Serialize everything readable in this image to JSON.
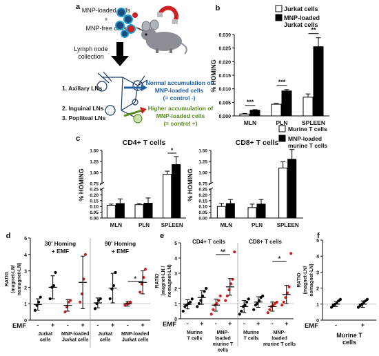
{
  "panel_a": {
    "letter": "a",
    "mnp_loaded_cells": "MNP-loaded cells",
    "plus": "+",
    "mnp_free_cells": "MNP-free cells",
    "lymph_node": "Lymph node",
    "collection": "collection",
    "ln1": "1. Axillary LNs",
    "ln2": "2. Inguinal LNs",
    "ln3": "3. Popliteal LNs",
    "normal1": "Normal accumulation of",
    "normal2": "MNP-loaded cells",
    "normal3": "(= control -)",
    "higher1": "Higher accumulation of",
    "higher2": "MNP-loaded cells",
    "higher3": "(= control +)",
    "normal_color": "#1f5fa8",
    "higher_color": "#5a8a1a"
  },
  "chart_data": [
    {
      "id": "b",
      "letter": "b",
      "type": "bar",
      "categories": [
        "MLN",
        "PLN",
        "SPLEEN"
      ],
      "ylabel": "% HOMING",
      "ylim": [
        0,
        0.03
      ],
      "yticks": [
        "0.000",
        "0.005",
        "0.010",
        "0.015",
        "0.020",
        "0.025",
        "0.030"
      ],
      "legend": [
        "Jurkat cells",
        "MNP-loaded Jurkat cells"
      ],
      "legend_lines": [
        [
          "Jurkat cells"
        ],
        [
          "MNP-loaded",
          "Jurkat cells"
        ]
      ],
      "series": [
        {
          "name": "Jurkat cells",
          "values": [
            0.0007,
            0.0043,
            0.0069
          ],
          "err": [
            0.0002,
            0.0003,
            0.0012
          ],
          "fill": "#ffffff"
        },
        {
          "name": "MNP-loaded Jurkat cells",
          "values": [
            0.0021,
            0.0092,
            0.0255
          ],
          "err": [
            0.0002,
            0.0005,
            0.0033
          ],
          "fill": "#000000"
        }
      ],
      "significance": [
        {
          "category": 0,
          "label": "***"
        },
        {
          "category": 1,
          "label": "***"
        },
        {
          "category": 2,
          "label": "**"
        }
      ]
    },
    {
      "id": "c1",
      "letter": "c",
      "type": "bar",
      "title": "CD4+ T cells",
      "categories": [
        "MLN",
        "PLN",
        "SPLEEN"
      ],
      "ylabel": "% HOMING",
      "axis_break": {
        "lower": [
          0,
          0.25
        ],
        "upper": [
          0.75,
          1.5
        ]
      },
      "yticks_lower": [
        "0.00",
        "0.05",
        "0.10",
        "0.15",
        "0.20",
        "0.25"
      ],
      "yticks_upper": [
        "0.75",
        "1.00",
        "1.25",
        "1.50"
      ],
      "series": [
        {
          "name": "Murine T cells",
          "values": [
            0.11,
            0.115,
            0.96
          ],
          "err": [
            0.01,
            0.01,
            0.07
          ],
          "fill": "#ffffff"
        },
        {
          "name": "MNP-loaded murine T cells",
          "values": [
            0.125,
            0.128,
            1.18
          ],
          "err": [
            0.04,
            0.045,
            0.18
          ],
          "fill": "#000000"
        }
      ],
      "significance": [
        {
          "category": 2,
          "label": "*"
        }
      ]
    },
    {
      "id": "c2",
      "letter": "",
      "type": "bar",
      "title": "CD8+ T cells",
      "categories": [
        "MLN",
        "PLN",
        "SPLEEN"
      ],
      "ylabel": "% HOMING",
      "axis_break": {
        "lower": [
          0,
          0.25
        ],
        "upper": [
          0.75,
          1.5
        ]
      },
      "yticks_lower": [
        "0.00",
        "0.05",
        "0.10",
        "0.15",
        "0.20",
        "0.25"
      ],
      "yticks_upper": [
        "0.75",
        "1.00",
        "1.25",
        "1.50"
      ],
      "legend": [
        "Murine T cells",
        "MNP-loaded murine T cells"
      ],
      "legend_lines": [
        [
          "Murine T cells"
        ],
        [
          "MNP-loaded",
          "murine T cells"
        ]
      ],
      "series": [
        {
          "name": "Murine T cells",
          "values": [
            0.1,
            0.09,
            1.1
          ],
          "err": [
            0.025,
            0.03,
            0.14
          ],
          "fill": "#ffffff"
        },
        {
          "name": "MNP-loaded murine T cells",
          "values": [
            0.125,
            0.12,
            1.3
          ],
          "err": [
            0.035,
            0.04,
            0.22
          ],
          "fill": "#000000"
        }
      ]
    },
    {
      "id": "d",
      "letter": "d",
      "type": "scatter",
      "ylabel_lines": [
        "RATIO",
        "(magnet-LN/",
        "nomagnet-LN)"
      ],
      "ylim": [
        0,
        5
      ],
      "yticks": [
        "0",
        "1",
        "2",
        "3",
        "4",
        "5"
      ],
      "reference_line": 1,
      "emf_label": "EMF",
      "emf_signs": [
        "-",
        "+",
        "-",
        "+",
        "-",
        "+",
        "-",
        "+"
      ],
      "subtitles": [
        [
          "30' Homing",
          "+ EMF"
        ],
        [
          "90' Homing",
          "+ EMF"
        ]
      ],
      "group_labels": [
        [
          "Jurkat",
          "cells"
        ],
        [
          "MNP-loaded",
          "Jurkat cells"
        ],
        [
          "Jurkat",
          "cells"
        ],
        [
          "MNP-loaded",
          "Jurkat cells"
        ]
      ],
      "groups": [
        {
          "values": [
            0.6,
            0.9,
            1.1,
            1.4
          ],
          "mean": 0.95,
          "sd": 0.35,
          "color": "#000000"
        },
        {
          "values": [
            1.3,
            2.0,
            2.1,
            2.9
          ],
          "mean": 2.0,
          "sd": 0.7,
          "color": "#000000"
        },
        {
          "values": [
            0.5,
            0.8,
            1.1,
            1.2
          ],
          "mean": 0.9,
          "sd": 0.35,
          "color": "#cc2222"
        },
        {
          "values": [
            1.1,
            1.6,
            2.5,
            4.0
          ],
          "mean": 2.3,
          "sd": 1.6,
          "color": "#cc2222"
        },
        {
          "values": [
            0.7,
            1.0,
            1.2,
            1.3
          ],
          "mean": 1.05,
          "sd": 0.3,
          "color": "#000000"
        },
        {
          "values": [
            1.3,
            1.9,
            2.1,
            2.9
          ],
          "mean": 1.95,
          "sd": 0.9,
          "color": "#000000"
        },
        {
          "values": [
            0.9,
            1.0,
            1.0,
            1.1
          ],
          "mean": 1.0,
          "sd": 0.15,
          "color": "#cc2222"
        },
        {
          "values": [
            1.7,
            2.2,
            2.6,
            3.1
          ],
          "mean": 2.3,
          "sd": 0.7,
          "color": "#cc2222"
        }
      ],
      "significance": [
        {
          "groups": [
            6,
            7
          ],
          "label": "*"
        }
      ]
    },
    {
      "id": "e",
      "letter": "e",
      "type": "scatter",
      "ylabel_lines": [
        "RATIO",
        "(magnet-LN /",
        "nomagnet-LN)"
      ],
      "ylim": [
        0,
        5
      ],
      "yticks": [
        "0",
        "1",
        "2",
        "3",
        "4",
        "5"
      ],
      "reference_line": 1,
      "emf_label": "EMF",
      "emf_signs": [
        "-",
        "+",
        "-",
        "+",
        "-",
        "+",
        "-",
        "+"
      ],
      "subtitles": [
        [
          "CD4+ T cells"
        ],
        [
          "CD8+ T cells"
        ]
      ],
      "group_labels": [
        [
          "Murine",
          "T cells"
        ],
        [
          "MNP-",
          "loaded",
          "murine T",
          "cells"
        ],
        [
          "Murine",
          "T cells"
        ],
        [
          "MNP-",
          "loaded",
          "murine T cells"
        ]
      ],
      "groups": [
        {
          "values": [
            0.5,
            0.8,
            0.9,
            1.0,
            1.1,
            1.3
          ],
          "mean": 0.95,
          "sd": 0.3,
          "color": "#000000"
        },
        {
          "values": [
            0.8,
            1.0,
            1.2,
            1.5,
            1.8,
            2.0
          ],
          "mean": 1.4,
          "sd": 0.45,
          "color": "#000000"
        },
        {
          "values": [
            0.3,
            0.6,
            0.9,
            1.0,
            1.2,
            1.5
          ],
          "mean": 0.9,
          "sd": 0.4,
          "color": "#cc2222"
        },
        {
          "values": [
            1.2,
            1.5,
            1.9,
            2.3,
            2.6,
            4.4
          ],
          "mean": 2.1,
          "sd": 0.55,
          "color": "#cc2222"
        },
        {
          "values": [
            0.3,
            0.5,
            0.8,
            0.9,
            1.1,
            1.3
          ],
          "mean": 0.8,
          "sd": 0.4,
          "color": "#000000"
        },
        {
          "values": [
            0.6,
            0.9,
            1.0,
            1.2,
            1.4,
            1.5
          ],
          "mean": 1.1,
          "sd": 0.35,
          "color": "#000000"
        },
        {
          "values": [
            0.4,
            0.6,
            0.8,
            0.9,
            1.0,
            1.1
          ],
          "mean": 0.8,
          "sd": 0.3,
          "color": "#cc2222"
        },
        {
          "values": [
            0.9,
            1.1,
            1.4,
            1.7,
            2.1,
            4.3
          ],
          "mean": 1.6,
          "sd": 0.6,
          "color": "#cc2222"
        }
      ],
      "significance": [
        {
          "groups": [
            2,
            3
          ],
          "label": "**"
        },
        {
          "groups": [
            6,
            7
          ],
          "label": "*"
        }
      ]
    },
    {
      "id": "f",
      "letter": "f",
      "type": "scatter",
      "ylabel_lines": [
        "RATIO",
        "(magnet-LN/",
        "nomagnet-LN)"
      ],
      "ylim": [
        0,
        5
      ],
      "yticks": [
        "0",
        "1",
        "2",
        "3",
        "4",
        "5"
      ],
      "reference_line": 1,
      "emf_label": "EMF",
      "emf_signs": [
        "-",
        "+"
      ],
      "group_title": [
        "Murine T",
        "cells"
      ],
      "groups": [
        {
          "values": [
            0.8,
            0.9,
            1.0,
            1.1,
            1.2,
            1.3
          ],
          "mean": 1.0,
          "sd": 0.15,
          "color": "#000000"
        },
        {
          "values": [
            0.8,
            0.9,
            1.0,
            1.1,
            1.2,
            1.3
          ],
          "mean": 1.0,
          "sd": 0.2,
          "color": "#000000"
        }
      ]
    }
  ]
}
